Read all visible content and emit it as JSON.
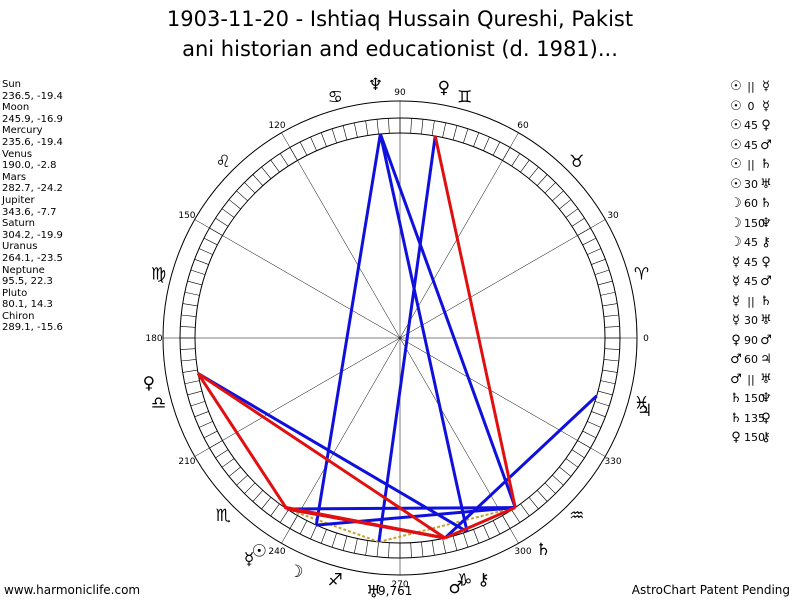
{
  "title": {
    "line1": "1903-11-20 - Ishtiaq Hussain Qureshi, Pakist",
    "line2": "ani historian and educationist (d. 1981)..."
  },
  "planets": [
    {
      "name": "Sun",
      "coords": "236.5, -19.4",
      "lon": 236.5,
      "glyph": "☉"
    },
    {
      "name": "Moon",
      "coords": "245.9, -16.9",
      "lon": 245.9,
      "glyph": "☽"
    },
    {
      "name": "Mercury",
      "coords": "235.6, -19.4",
      "lon": 235.6,
      "glyph": "☿"
    },
    {
      "name": "Venus",
      "coords": "190.0, -2.8",
      "lon": 190.0,
      "glyph": "♀"
    },
    {
      "name": "Mars",
      "coords": "282.7, -24.2",
      "lon": 282.7,
      "glyph": "♂"
    },
    {
      "name": "Jupiter",
      "coords": "343.6, -7.7",
      "lon": 343.6,
      "glyph": "♃"
    },
    {
      "name": "Saturn",
      "coords": "304.2, -19.9",
      "lon": 304.2,
      "glyph": "♄"
    },
    {
      "name": "Uranus",
      "coords": "264.1, -23.5",
      "lon": 264.1,
      "glyph": "♅"
    },
    {
      "name": "Neptune",
      "coords": "95.5, 22.3",
      "lon": 95.5,
      "glyph": "♆"
    },
    {
      "name": "Pluto",
      "coords": "80.1, 14.3",
      "lon": 80.1,
      "glyph": "♀"
    },
    {
      "name": "Chiron",
      "coords": "289.1, -15.6",
      "lon": 289.1,
      "glyph": "⚷"
    }
  ],
  "aspects": [
    {
      "p1": "☉",
      "aspect": "||",
      "p2": "☿"
    },
    {
      "p1": "☉",
      "aspect": "0",
      "p2": "☿"
    },
    {
      "p1": "☉",
      "aspect": "45",
      "p2": "♀"
    },
    {
      "p1": "☉",
      "aspect": "45",
      "p2": "♂"
    },
    {
      "p1": "☉",
      "aspect": "||",
      "p2": "♄"
    },
    {
      "p1": "☉",
      "aspect": "30",
      "p2": "♅"
    },
    {
      "p1": "☽",
      "aspect": "60",
      "p2": "♄"
    },
    {
      "p1": "☽",
      "aspect": "150",
      "p2": "♆"
    },
    {
      "p1": "☽",
      "aspect": "45",
      "p2": "⚷"
    },
    {
      "p1": "☿",
      "aspect": "45",
      "p2": "♀"
    },
    {
      "p1": "☿",
      "aspect": "45",
      "p2": "♂"
    },
    {
      "p1": "☿",
      "aspect": "||",
      "p2": "♄"
    },
    {
      "p1": "☿",
      "aspect": "30",
      "p2": "♅"
    },
    {
      "p1": "♀",
      "aspect": "90",
      "p2": "♂"
    },
    {
      "p1": "♂",
      "aspect": "60",
      "p2": "♃"
    },
    {
      "p1": "♂",
      "aspect": "||",
      "p2": "♅"
    },
    {
      "p1": "♄",
      "aspect": "150",
      "p2": "♆"
    },
    {
      "p1": "♄",
      "aspect": "135",
      "p2": "♀"
    },
    {
      "p1": "♀",
      "aspect": "150",
      "p2": "⚷"
    }
  ],
  "wheel": {
    "degree_labels": [
      "0",
      "30",
      "60",
      "90",
      "120",
      "150",
      "180",
      "210",
      "240",
      "270",
      "300",
      "330"
    ],
    "zodiac": [
      {
        "name": "aries",
        "glyph": "♈"
      },
      {
        "name": "taurus",
        "glyph": "♉"
      },
      {
        "name": "gemini",
        "glyph": "♊"
      },
      {
        "name": "cancer",
        "glyph": "♋"
      },
      {
        "name": "leo",
        "glyph": "♌"
      },
      {
        "name": "virgo",
        "glyph": "♍"
      },
      {
        "name": "libra",
        "glyph": "♎"
      },
      {
        "name": "scorpio",
        "glyph": "♏"
      },
      {
        "name": "sagittarius",
        "glyph": "♐"
      },
      {
        "name": "capricorn",
        "glyph": "♑"
      },
      {
        "name": "aquarius",
        "glyph": "♒"
      },
      {
        "name": "pisces",
        "glyph": "♓"
      }
    ],
    "colors": {
      "blue": "#1010dd",
      "red": "#e01010",
      "gold": "#c8a030"
    }
  },
  "footer": {
    "left": "www.harmoniclife.com",
    "right": "AstroChart Patent Pending",
    "center_note": "9,761"
  }
}
